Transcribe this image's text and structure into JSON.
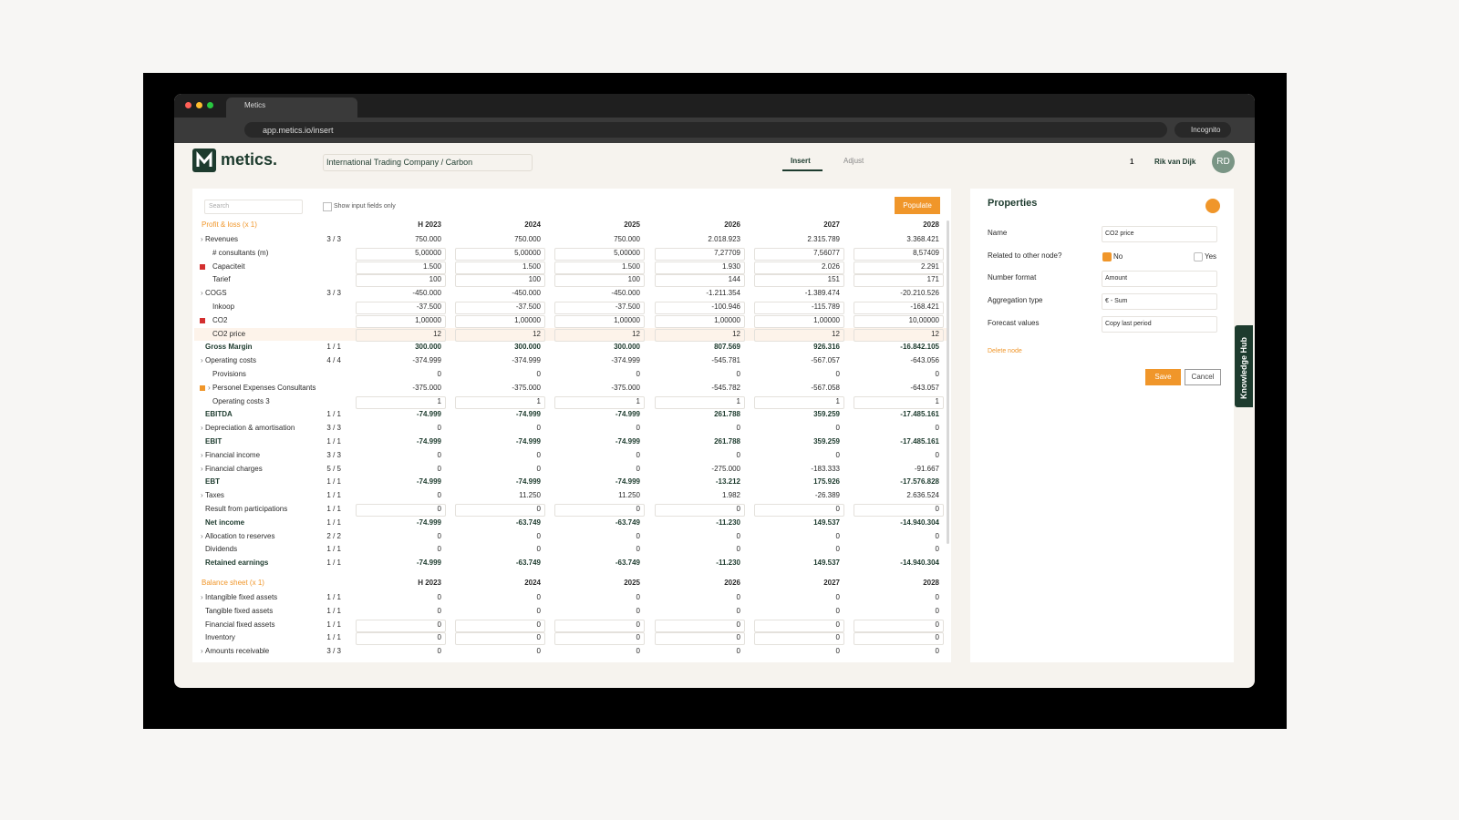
{
  "browser": {
    "tab_title": "Metics",
    "url": "app.metics.io/insert",
    "incognito": "Incognito"
  },
  "header": {
    "logo": "metics.",
    "company": "International Trading Company / Carbon",
    "tabs": [
      "Insert",
      "Adjust"
    ],
    "count": "1",
    "user": "Rik van Dijk",
    "initials": "RD"
  },
  "toolbar": {
    "search": "Search",
    "checkbox": "Show input fields only",
    "button": "Populate"
  },
  "profit_loss": {
    "title": "Profit & loss (x 1)",
    "years": [
      "H 2023",
      "2024",
      "2025",
      "2026",
      "2027",
      "2028"
    ],
    "rows": [
      {
        "label": "Revenues",
        "count": "3 / 3",
        "values": [
          "750.000",
          "750.000",
          "750.000",
          "2.018.923",
          "2.315.789",
          "3.368.421"
        ]
      },
      {
        "label": "# consultants (m)",
        "values": [
          "5,00000",
          "5,00000",
          "5,00000",
          "7,27709",
          "7,56077",
          "8,57409"
        ]
      },
      {
        "label": "Capaciteit",
        "values": [
          "1.500",
          "1.500",
          "1.500",
          "1.930",
          "2.026",
          "2.291"
        ]
      },
      {
        "label": "Tarief",
        "values": [
          "100",
          "100",
          "100",
          "144",
          "151",
          "171"
        ]
      },
      {
        "label": "COGS",
        "count": "3 / 3",
        "values": [
          "-450.000",
          "-450.000",
          "-450.000",
          "-1.211.354",
          "-1.389.474",
          "-20.210.526"
        ]
      },
      {
        "label": "Inkoop",
        "values": [
          "-37.500",
          "-37.500",
          "-37.500",
          "-100.946",
          "-115.789",
          "-168.421"
        ]
      },
      {
        "label": "CO2",
        "values": [
          "1,00000",
          "1,00000",
          "1,00000",
          "1,00000",
          "1,00000",
          "10,00000"
        ]
      },
      {
        "label": "CO2 price",
        "values": [
          "12",
          "12",
          "12",
          "12",
          "12",
          "12"
        ]
      },
      {
        "label": "Gross Margin",
        "count": "1 / 1",
        "values": [
          "300.000",
          "300.000",
          "300.000",
          "807.569",
          "926.316",
          "-16.842.105"
        ]
      },
      {
        "label": "Operating costs",
        "count": "4 / 4",
        "values": [
          "-374.999",
          "-374.999",
          "-374.999",
          "-545.781",
          "-567.057",
          "-643.056"
        ]
      },
      {
        "label": "Provisions",
        "values": [
          "0",
          "0",
          "0",
          "0",
          "0",
          "0"
        ]
      },
      {
        "label": "Personel Expenses Consultants",
        "values": [
          "-375.000",
          "-375.000",
          "-375.000",
          "-545.782",
          "-567.058",
          "-643.057"
        ]
      },
      {
        "label": "Operating costs 3",
        "values": [
          "1",
          "1",
          "1",
          "1",
          "1",
          "1"
        ]
      },
      {
        "label": "EBITDA",
        "count": "1 / 1",
        "values": [
          "-74.999",
          "-74.999",
          "-74.999",
          "261.788",
          "359.259",
          "-17.485.161"
        ]
      },
      {
        "label": "Depreciation & amortisation",
        "count": "3 / 3",
        "values": [
          "0",
          "0",
          "0",
          "0",
          "0",
          "0"
        ]
      },
      {
        "label": "EBIT",
        "count": "1 / 1",
        "values": [
          "-74.999",
          "-74.999",
          "-74.999",
          "261.788",
          "359.259",
          "-17.485.161"
        ]
      },
      {
        "label": "Financial income",
        "count": "3 / 3",
        "values": [
          "0",
          "0",
          "0",
          "0",
          "0",
          "0"
        ]
      },
      {
        "label": "Financial charges",
        "count": "5 / 5",
        "values": [
          "0",
          "0",
          "0",
          "-275.000",
          "-183.333",
          "-91.667"
        ]
      },
      {
        "label": "EBT",
        "count": "1 / 1",
        "values": [
          "-74.999",
          "-74.999",
          "-74.999",
          "-13.212",
          "175.926",
          "-17.576.828"
        ]
      },
      {
        "label": "Taxes",
        "count": "1 / 1",
        "values": [
          "0",
          "11.250",
          "11.250",
          "1.982",
          "-26.389",
          "2.636.524"
        ]
      },
      {
        "label": "Result from participations",
        "count": "1 / 1",
        "values": [
          "0",
          "0",
          "0",
          "0",
          "0",
          "0"
        ]
      },
      {
        "label": "Net income",
        "count": "1 / 1",
        "values": [
          "-74.999",
          "-63.749",
          "-63.749",
          "-11.230",
          "149.537",
          "-14.940.304"
        ]
      },
      {
        "label": "Allocation to reserves",
        "count": "2 / 2",
        "values": [
          "0",
          "0",
          "0",
          "0",
          "0",
          "0"
        ]
      },
      {
        "label": "Dividends",
        "count": "1 / 1",
        "values": [
          "0",
          "0",
          "0",
          "0",
          "0",
          "0"
        ]
      },
      {
        "label": "Retained earnings",
        "count": "1 / 1",
        "values": [
          "-74.999",
          "-63.749",
          "-63.749",
          "-11.230",
          "149.537",
          "-14.940.304"
        ]
      }
    ]
  },
  "balance_sheet": {
    "title": "Balance sheet (x 1)",
    "years": [
      "H 2023",
      "2024",
      "2025",
      "2026",
      "2027",
      "2028"
    ],
    "rows": [
      {
        "label": "Intangible fixed assets",
        "count": "1 / 1",
        "values": [
          "0",
          "0",
          "0",
          "0",
          "0",
          "0"
        ]
      },
      {
        "label": "Tangible fixed assets",
        "count": "1 / 1",
        "values": [
          "0",
          "0",
          "0",
          "0",
          "0",
          "0"
        ]
      },
      {
        "label": "Financial fixed assets",
        "count": "1 / 1",
        "values": [
          "0",
          "0",
          "0",
          "0",
          "0",
          "0"
        ]
      },
      {
        "label": "Inventory",
        "count": "1 / 1",
        "values": [
          "0",
          "0",
          "0",
          "0",
          "0",
          "0"
        ]
      },
      {
        "label": "Amounts receivable",
        "count": "3 / 3",
        "values": [
          "0",
          "0",
          "0",
          "0",
          "0",
          "0"
        ]
      }
    ]
  },
  "properties": {
    "title": "Properties",
    "fields": [
      {
        "label": "Name",
        "value": "CO2 price"
      },
      {
        "label": "Related to other node?",
        "options": [
          "No",
          "Yes"
        ]
      },
      {
        "label": "Number format",
        "value": "Amount"
      },
      {
        "label": "Aggregation type",
        "value": "€ - Sum"
      },
      {
        "label": "Forecast values",
        "value": "Copy last period"
      }
    ],
    "delete": "Delete node",
    "save": "Save",
    "cancel": "Cancel"
  },
  "knowledge_hub": "Knowledge Hub"
}
